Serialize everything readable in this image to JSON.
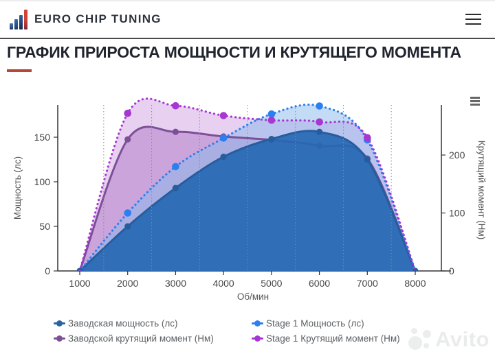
{
  "header": {
    "brand": "EURO CHIP TUNING",
    "icons": {
      "logo": "bar-chart-logo-icon",
      "menu": "hamburger-icon"
    }
  },
  "page": {
    "title": "ГРАФИК ПРИРОСТА МОЩНОСТИ И КРУТЯЩЕГО МОМЕНТА",
    "accent_color": "#b8473a"
  },
  "chart_data": {
    "type": "area",
    "x": [
      1000,
      2000,
      3000,
      4000,
      5000,
      6000,
      7000,
      8000
    ],
    "xticks": [
      1000,
      2000,
      3000,
      4000,
      5000,
      6000,
      7000,
      8000
    ],
    "grid_vertical_at": [
      1500,
      2500,
      3500,
      4500,
      5500,
      6500,
      7500
    ],
    "xlabel": "Об/мин",
    "ylabel_left": "Мощность (лс)",
    "yticks_left": [
      0,
      50,
      100,
      150
    ],
    "ylim_left": [
      0,
      195
    ],
    "ylabel_right": "Крутящий момент (Нм)",
    "yticks_right": [
      0,
      100,
      200
    ],
    "ylim_right": [
      0,
      300
    ],
    "legend_position": "bottom",
    "context_menu_icon": "chart-context-menu-icon",
    "series": [
      {
        "name": "Заводская мощность (лс)",
        "axis": "left",
        "line": "solid",
        "color": "#275d9d",
        "fill": "#2367b2",
        "fill_opacity": 0.9,
        "values": [
          0,
          50,
          93,
          128,
          148,
          156,
          125,
          0
        ]
      },
      {
        "name": "Stage 1 Мощность (лс)",
        "axis": "left",
        "line": "dotted",
        "color": "#2b7ff0",
        "fill": "#88b8ec",
        "fill_opacity": 0.5,
        "values": [
          0,
          65,
          117,
          149,
          176,
          185,
          147,
          0
        ]
      },
      {
        "name": "Заводской крутящий момент (Нм)",
        "axis": "right",
        "line": "solid",
        "color": "#7c4f97",
        "fill": "#b080c8",
        "fill_opacity": 0.55,
        "values": [
          0,
          227,
          240,
          232,
          226,
          216,
          194,
          0
        ]
      },
      {
        "name": "Stage 1 Крутящий момент (Нм)",
        "axis": "right",
        "line": "dotted",
        "color": "#a736d2",
        "fill": "#d9b0e8",
        "fill_opacity": 0.6,
        "values": [
          0,
          272,
          285,
          268,
          260,
          257,
          230,
          0
        ]
      }
    ]
  },
  "legend": {
    "items": [
      {
        "label": "Заводская мощность (лс)",
        "color": "#2a62a5",
        "series_index": 0
      },
      {
        "label": "Заводской крутящий момент (Нм)",
        "color": "#7c4f97",
        "series_index": 2
      },
      {
        "label": "Stage 1 Мощность (лс)",
        "color": "#2b7ff0",
        "series_index": 1
      },
      {
        "label": "Stage 1 Крутящий момент (Нм)",
        "color": "#a736d2",
        "series_index": 3
      }
    ]
  },
  "watermark": {
    "text": "Avito"
  }
}
